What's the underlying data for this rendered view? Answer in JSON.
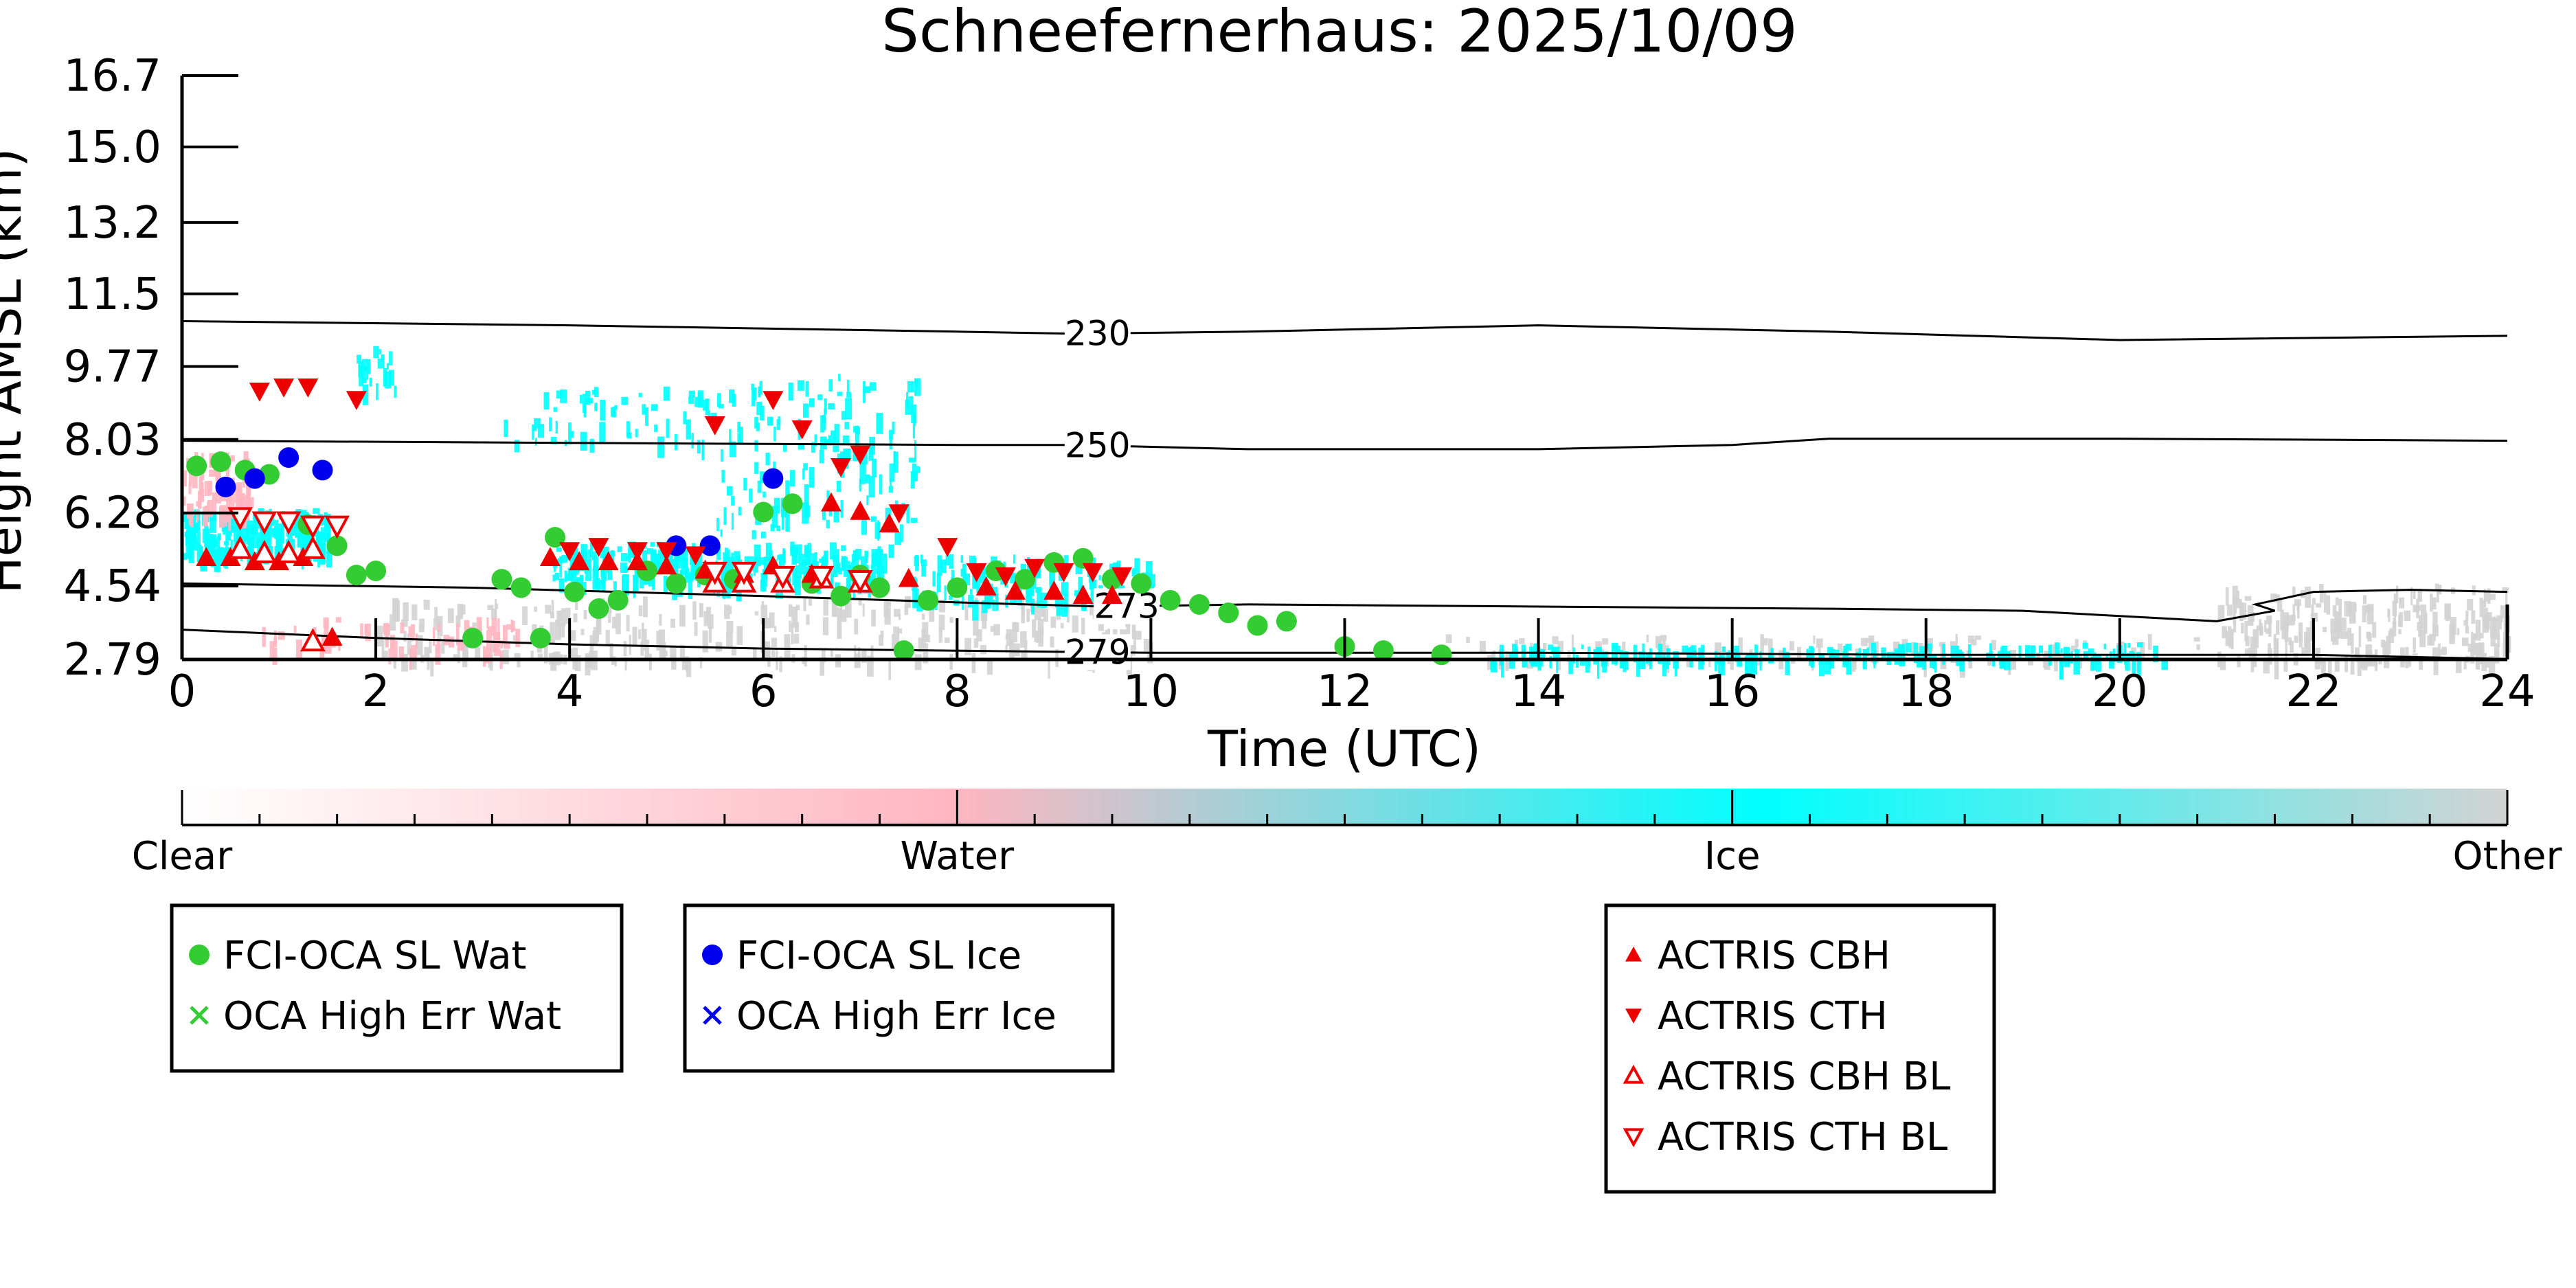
{
  "chart_data": {
    "type": "scatter",
    "title": "Schneefernerhaus: 2025/10/09",
    "xlabel": "Time (UTC)",
    "ylabel": "Height AMSL (km)",
    "xlim": [
      0,
      24
    ],
    "ylim": [
      2.79,
      16.7
    ],
    "x_ticks": [
      0,
      2,
      4,
      6,
      8,
      10,
      12,
      14,
      16,
      18,
      20,
      22,
      24
    ],
    "y_ticks": [
      "2.79",
      "4.54",
      "6.28",
      "8.03",
      "9.77",
      "11.5",
      "13.2",
      "15.0",
      "16.7"
    ],
    "y_tick_values": [
      2.79,
      4.54,
      6.28,
      8.03,
      9.77,
      11.5,
      13.2,
      15.0,
      16.7
    ],
    "grid": false,
    "colorbar": {
      "labels": [
        "Clear",
        "Water",
        "Ice",
        "Other"
      ],
      "colors": [
        "#ffffff",
        "#ffb6c1",
        "#00ffff",
        "#d3d3d3"
      ]
    },
    "isotherms": [
      {
        "label": "230",
        "label_x": 9.45,
        "points": [
          [
            0,
            10.85
          ],
          [
            4,
            10.75
          ],
          [
            8,
            10.6
          ],
          [
            9.2,
            10.55
          ],
          [
            11,
            10.6
          ],
          [
            14,
            10.75
          ],
          [
            17,
            10.6
          ],
          [
            20,
            10.4
          ],
          [
            24,
            10.5
          ]
        ]
      },
      {
        "label": "250",
        "label_x": 9.45,
        "points": [
          [
            0,
            8.0
          ],
          [
            4,
            7.95
          ],
          [
            8,
            7.9
          ],
          [
            9.2,
            7.9
          ],
          [
            11,
            7.8
          ],
          [
            14,
            7.8
          ],
          [
            16,
            7.9
          ],
          [
            17,
            8.05
          ],
          [
            20,
            8.05
          ],
          [
            24,
            8.0
          ]
        ]
      },
      {
        "label": "273",
        "label_x": 9.75,
        "points": [
          [
            0,
            4.6
          ],
          [
            3,
            4.5
          ],
          [
            6,
            4.3
          ],
          [
            8,
            4.15
          ],
          [
            9.5,
            4.05
          ],
          [
            11,
            4.1
          ],
          [
            14,
            4.05
          ],
          [
            17,
            4.0
          ],
          [
            19,
            3.95
          ],
          [
            21,
            3.7
          ],
          [
            21.6,
            3.95
          ],
          [
            21.4,
            4.1
          ],
          [
            22,
            4.4
          ],
          [
            23,
            4.45
          ],
          [
            24,
            4.4
          ]
        ]
      },
      {
        "label": "279",
        "label_x": 9.45,
        "points": [
          [
            0,
            3.5
          ],
          [
            2,
            3.3
          ],
          [
            4,
            3.15
          ],
          [
            6,
            3.05
          ],
          [
            8,
            3.0
          ],
          [
            10,
            2.95
          ],
          [
            14,
            2.95
          ],
          [
            18,
            2.9
          ],
          [
            22,
            2.9
          ],
          [
            24,
            2.8
          ]
        ]
      }
    ],
    "series": [
      {
        "name": "FCI-OCA SL Wat",
        "color": "#33cc33",
        "marker": "circle",
        "x": [
          0.15,
          0.4,
          0.65,
          0.9,
          1.3,
          1.6,
          1.8,
          2.0,
          3.0,
          3.3,
          3.5,
          3.7,
          3.85,
          4.05,
          4.3,
          4.5,
          4.8,
          5.1,
          5.4,
          5.7,
          6.0,
          6.3,
          6.5,
          6.8,
          7.0,
          7.2,
          7.45,
          7.7,
          8.0,
          8.4,
          8.7,
          9.0,
          9.3,
          9.6,
          9.9,
          10.2,
          10.5,
          10.8,
          11.1,
          11.4,
          12.0,
          12.4,
          13.0
        ],
        "y": [
          7.4,
          7.5,
          7.3,
          7.2,
          6.0,
          5.5,
          4.8,
          4.9,
          3.3,
          4.7,
          4.5,
          3.3,
          5.7,
          4.4,
          4.0,
          4.2,
          4.9,
          4.6,
          4.8,
          4.7,
          6.3,
          6.5,
          4.6,
          4.3,
          4.8,
          4.5,
          3.0,
          4.2,
          4.5,
          4.9,
          4.7,
          5.1,
          5.2,
          4.7,
          4.6,
          4.2,
          4.1,
          3.9,
          3.6,
          3.7,
          3.1,
          3.0,
          2.9
        ]
      },
      {
        "name": "OCA High Err Wat",
        "color": "#33cc33",
        "marker": "x",
        "x": [],
        "y": []
      },
      {
        "name": "FCI-OCA SL Ice",
        "color": "#0000ee",
        "marker": "circle",
        "x": [
          0.45,
          0.75,
          1.1,
          1.45,
          5.1,
          5.45,
          6.1
        ],
        "y": [
          6.9,
          7.1,
          7.6,
          7.3,
          5.5,
          5.5,
          7.1
        ]
      },
      {
        "name": "OCA High Err Ice",
        "color": "#0000ee",
        "marker": "x",
        "x": [],
        "y": []
      },
      {
        "name": "ACTRIS CBH",
        "color": "#ee0000",
        "marker": "triangle-up",
        "x": [
          0.25,
          0.5,
          0.75,
          1.0,
          1.25,
          1.55,
          3.8,
          4.1,
          4.4,
          4.7,
          5.0,
          5.4,
          5.8,
          6.1,
          6.5,
          6.7,
          7.0,
          7.3,
          7.5,
          8.3,
          8.6,
          9.0,
          9.3,
          9.6
        ],
        "y": [
          5.2,
          5.2,
          5.1,
          5.1,
          5.2,
          3.3,
          5.2,
          5.1,
          5.1,
          5.1,
          5.0,
          4.9,
          4.8,
          5.0,
          4.8,
          6.5,
          6.3,
          6.0,
          4.7,
          4.5,
          4.4,
          4.4,
          4.3,
          4.3
        ]
      },
      {
        "name": "ACTRIS CTH",
        "color": "#ee0000",
        "marker": "triangle-down",
        "x": [
          0.8,
          1.05,
          1.3,
          1.8,
          5.5,
          6.1,
          6.4,
          6.8,
          7.0,
          7.4,
          7.9,
          8.2,
          8.5,
          8.8,
          9.1,
          9.4,
          9.7,
          4.0,
          4.3,
          4.7,
          5.0,
          5.3
        ],
        "y": [
          9.2,
          9.3,
          9.3,
          9.0,
          8.4,
          9.0,
          8.3,
          7.4,
          7.7,
          6.3,
          5.5,
          4.9,
          4.8,
          5.0,
          4.9,
          4.9,
          4.8,
          5.4,
          5.5,
          5.4,
          5.4,
          5.3
        ]
      },
      {
        "name": "ACTRIS CBH BL",
        "color": "#ee0000",
        "marker": "triangle-up-open",
        "x": [
          0.6,
          0.85,
          1.1,
          1.35,
          5.5,
          5.8,
          6.2,
          6.6,
          7.0,
          1.35
        ],
        "y": [
          5.4,
          5.3,
          5.3,
          5.4,
          4.6,
          4.6,
          4.6,
          4.7,
          4.6,
          3.2
        ]
      },
      {
        "name": "ACTRIS CTH BL",
        "color": "#ee0000",
        "marker": "triangle-down-open",
        "x": [
          0.6,
          0.85,
          1.1,
          1.35,
          1.6,
          5.5,
          5.8,
          6.2,
          6.6,
          7.0
        ],
        "y": [
          6.2,
          6.1,
          6.1,
          6.0,
          6.0,
          4.9,
          4.9,
          4.8,
          4.8,
          4.7
        ]
      }
    ],
    "legend": [
      [
        "FCI-OCA SL Wat",
        "OCA High Err Wat"
      ],
      [
        "FCI-OCA SL Ice",
        "OCA High Err Ice"
      ],
      [
        "ACTRIS CBH",
        "ACTRIS CTH",
        "ACTRIS CBH BL",
        "ACTRIS CTH BL"
      ]
    ]
  }
}
